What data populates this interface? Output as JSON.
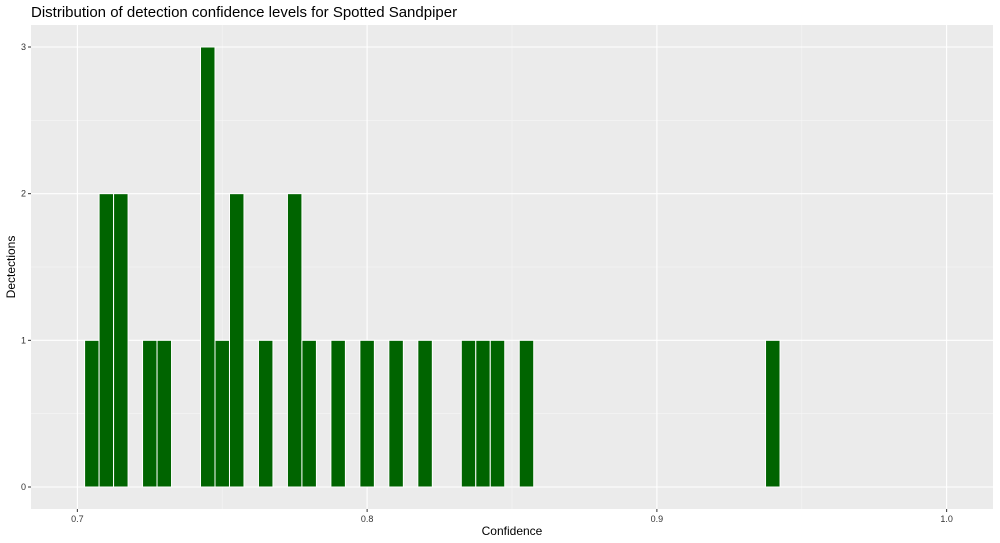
{
  "chart_data": {
    "type": "bar",
    "title": "Distribution of detection confidence levels for Spotted Sandpiper",
    "xlabel": "Confidence",
    "ylabel": "Dectections",
    "xlim": [
      0.684,
      1.016
    ],
    "ylim": [
      -0.15,
      3.15
    ],
    "bin_width": 0.005,
    "x_ticks": [
      {
        "value": 0.7,
        "label": "0.7"
      },
      {
        "value": 0.8,
        "label": "0.8"
      },
      {
        "value": 0.9,
        "label": "0.9"
      },
      {
        "value": 1.0,
        "label": "1.0"
      }
    ],
    "y_ticks": [
      {
        "value": 0,
        "label": "0"
      },
      {
        "value": 1,
        "label": "1"
      },
      {
        "value": 2,
        "label": "2"
      },
      {
        "value": 3,
        "label": "3"
      }
    ],
    "bars": [
      {
        "x": 0.705,
        "count": 1
      },
      {
        "x": 0.71,
        "count": 2
      },
      {
        "x": 0.715,
        "count": 2
      },
      {
        "x": 0.725,
        "count": 1
      },
      {
        "x": 0.73,
        "count": 1
      },
      {
        "x": 0.745,
        "count": 3
      },
      {
        "x": 0.75,
        "count": 1
      },
      {
        "x": 0.755,
        "count": 2
      },
      {
        "x": 0.765,
        "count": 1
      },
      {
        "x": 0.775,
        "count": 2
      },
      {
        "x": 0.78,
        "count": 1
      },
      {
        "x": 0.79,
        "count": 1
      },
      {
        "x": 0.8,
        "count": 1
      },
      {
        "x": 0.81,
        "count": 1
      },
      {
        "x": 0.82,
        "count": 1
      },
      {
        "x": 0.835,
        "count": 1
      },
      {
        "x": 0.84,
        "count": 1
      },
      {
        "x": 0.845,
        "count": 1
      },
      {
        "x": 0.855,
        "count": 1
      },
      {
        "x": 0.94,
        "count": 1
      }
    ],
    "grid": true,
    "legend": "none",
    "colors": {
      "bar_fill": "#006400",
      "bar_outline": "#ffffff",
      "panel_background": "#ebebeb",
      "grid_major": "#ffffff",
      "grid_minor": "#f5f5f5"
    }
  }
}
